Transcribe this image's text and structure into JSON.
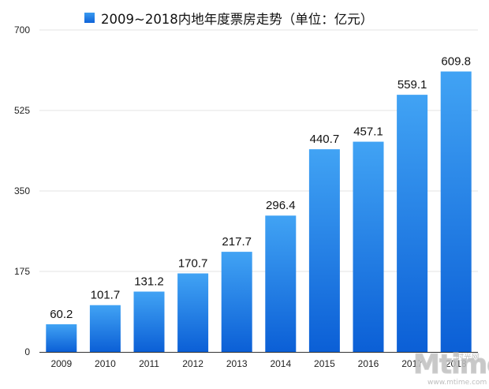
{
  "legend": {
    "label": "2009~2018内地年度票房走势（单位：亿元）"
  },
  "chart_data": {
    "type": "bar",
    "title": "",
    "xlabel": "",
    "ylabel": "",
    "categories": [
      "2009",
      "2010",
      "2011",
      "2012",
      "2013",
      "2014",
      "2015",
      "2016",
      "2017",
      "2018"
    ],
    "series": [
      {
        "name": "2009~2018内地年度票房走势（单位：亿元）",
        "values": [
          60.2,
          101.7,
          131.2,
          170.7,
          217.7,
          296.4,
          440.7,
          457.1,
          559.1,
          609.8
        ]
      }
    ],
    "value_labels": [
      "60.2",
      "101.7",
      "131.2",
      "170.7",
      "217.7",
      "296.4",
      "440.7",
      "457.1",
      "559.1",
      "609.8"
    ],
    "ylim": [
      0,
      700
    ],
    "yticks": [
      "0",
      "175",
      "350",
      "525",
      "700"
    ],
    "grid": true,
    "legend_position": "top",
    "colors": {
      "bar_top": "#41a3f4",
      "bar_bottom": "#0b5fd6",
      "grid": "#e3e3e3",
      "axis": "#333333"
    }
  },
  "watermark": {
    "logo": "Mtime",
    "cn": "时光网",
    "url": "www.mtime.com"
  }
}
